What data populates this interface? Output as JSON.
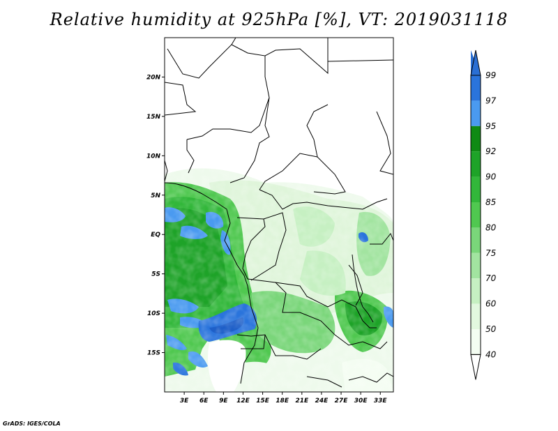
{
  "title": "Relative humidity at 925hPa [%], VT: 2019031118",
  "credit": "GrADS: IGES/COLA",
  "map": {
    "lat_ticks": [
      {
        "label": "20N",
        "lat": 20
      },
      {
        "label": "15N",
        "lat": 15
      },
      {
        "label": "10N",
        "lat": 10
      },
      {
        "label": "5N",
        "lat": 5
      },
      {
        "label": "EQ",
        "lat": 0
      },
      {
        "label": "5S",
        "lat": -5
      },
      {
        "label": "10S",
        "lat": -10
      },
      {
        "label": "15S",
        "lat": -15
      }
    ],
    "lon_ticks": [
      {
        "label": "3E",
        "lon": 3
      },
      {
        "label": "6E",
        "lon": 6
      },
      {
        "label": "9E",
        "lon": 9
      },
      {
        "label": "12E",
        "lon": 12
      },
      {
        "label": "15E",
        "lon": 15
      },
      {
        "label": "18E",
        "lon": 18
      },
      {
        "label": "21E",
        "lon": 21
      },
      {
        "label": "24E",
        "lon": 24
      },
      {
        "label": "27E",
        "lon": 27
      },
      {
        "label": "30E",
        "lon": 30
      },
      {
        "label": "33E",
        "lon": 33
      }
    ],
    "lon_range": [
      0,
      35
    ],
    "lat_range": [
      -20,
      25
    ]
  },
  "colorbar": {
    "levels": [
      {
        "label": "99",
        "color": "#1e5fc8"
      },
      {
        "label": "97",
        "color": "#2a74dc"
      },
      {
        "label": "95",
        "color": "#4a9af0"
      },
      {
        "label": "92",
        "color": "#0f8a14"
      },
      {
        "label": "90",
        "color": "#1ea328"
      },
      {
        "label": "85",
        "color": "#32b73a"
      },
      {
        "label": "80",
        "color": "#50c850"
      },
      {
        "label": "75",
        "color": "#7ad67a"
      },
      {
        "label": "70",
        "color": "#a2e4a0"
      },
      {
        "label": "60",
        "color": "#c6f0c2"
      },
      {
        "label": "50",
        "color": "#e2f8df"
      },
      {
        "label": "40",
        "color": "#f4fdf2"
      }
    ],
    "top_color": "#2a6fd4",
    "bottom_color": "#ffffff"
  }
}
